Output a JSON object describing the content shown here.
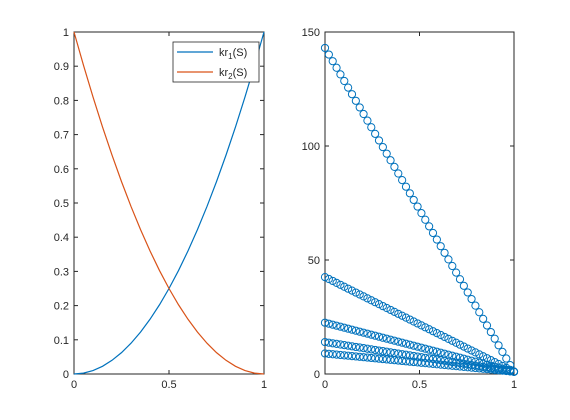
{
  "chart_data": [
    {
      "type": "line",
      "title": "",
      "xlabel": "",
      "ylabel": "",
      "xlim": [
        0,
        1
      ],
      "ylim": [
        0,
        1
      ],
      "xticks": [
        "0",
        "0.5",
        "1"
      ],
      "yticks": [
        "0",
        "0.1",
        "0.2",
        "0.3",
        "0.4",
        "0.5",
        "0.6",
        "0.7",
        "0.8",
        "0.9",
        "1"
      ],
      "legend_position": "top-right",
      "x": [
        0,
        0.05,
        0.1,
        0.15,
        0.2,
        0.25,
        0.3,
        0.35,
        0.4,
        0.45,
        0.5,
        0.55,
        0.6,
        0.65,
        0.7,
        0.75,
        0.8,
        0.85,
        0.9,
        0.95,
        1
      ],
      "series": [
        {
          "legend_main": "kr",
          "legend_sub": "1",
          "legend_suffix": "(S)",
          "color": "#0072BD",
          "values": [
            0,
            0.0025,
            0.01,
            0.0225,
            0.04,
            0.0625,
            0.09,
            0.1225,
            0.16,
            0.2025,
            0.25,
            0.3025,
            0.36,
            0.4225,
            0.49,
            0.5625,
            0.64,
            0.7225,
            0.81,
            0.9025,
            1
          ]
        },
        {
          "legend_main": "kr",
          "legend_sub": "2",
          "legend_suffix": "(S)",
          "color": "#D95319",
          "values": [
            1,
            0.9025,
            0.81,
            0.7225,
            0.64,
            0.5625,
            0.49,
            0.4225,
            0.36,
            0.3025,
            0.25,
            0.2025,
            0.16,
            0.1225,
            0.09,
            0.0625,
            0.04,
            0.0225,
            0.01,
            0.0025,
            0
          ]
        }
      ]
    },
    {
      "type": "scatter",
      "title": "",
      "xlabel": "",
      "ylabel": "",
      "xlim": [
        0,
        1
      ],
      "ylim": [
        0,
        150
      ],
      "xticks": [
        "0",
        "0.5",
        "1"
      ],
      "yticks": [
        "0",
        "50",
        "100",
        "150"
      ],
      "marker": "circle",
      "color": "#0072BD",
      "x_range": [
        0,
        1
      ],
      "n_points": 50,
      "series": [
        {
          "start": 143,
          "end": 1
        },
        {
          "start": 42.5,
          "end": 1
        },
        {
          "start": 22.5,
          "end": 1
        },
        {
          "start": 14,
          "end": 1
        },
        {
          "start": 9,
          "end": 1
        }
      ]
    }
  ]
}
